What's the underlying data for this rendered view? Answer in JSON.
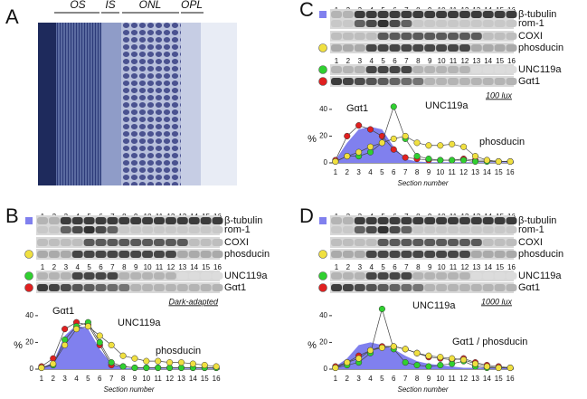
{
  "panels": {
    "A": {
      "label": "A",
      "layers": [
        "OS",
        "IS",
        "ONL",
        "OPL"
      ]
    },
    "B": {
      "label": "B",
      "lanes": [
        1,
        2,
        3,
        4,
        5,
        6,
        7,
        8,
        9,
        10,
        11,
        12,
        13,
        14,
        15,
        16
      ],
      "blots": [
        "β-tubulin",
        "rom-1",
        "COXI",
        "phosducin",
        "UNC119a",
        "Gαt1"
      ]
    },
    "C": {
      "label": "C",
      "lanes": [
        1,
        2,
        3,
        4,
        5,
        6,
        7,
        8,
        9,
        10,
        11,
        12,
        13,
        14,
        15,
        16
      ],
      "blots": [
        "β-tubulin",
        "rom-1",
        "COXI",
        "phosducin",
        "UNC119a",
        "Gαt1"
      ]
    },
    "D": {
      "label": "D",
      "lanes": [
        1,
        2,
        3,
        4,
        5,
        6,
        7,
        8,
        9,
        10,
        11,
        12,
        13,
        14,
        15,
        16
      ],
      "blots": [
        "β-tubulin",
        "rom-1",
        "COXI",
        "phosducin",
        "UNC119a",
        "Gαt1"
      ]
    }
  },
  "chart_data": [
    {
      "type": "line",
      "condition": "Dark-adapted",
      "y_label": "%",
      "x_label": "Section number",
      "annotations": [
        "Gαt1",
        "UNC119a",
        "phosducin"
      ],
      "x": [
        1,
        2,
        3,
        4,
        5,
        6,
        7,
        8,
        9,
        10,
        11,
        12,
        13,
        14,
        15,
        16
      ],
      "xlim": [
        0.7,
        16.3
      ],
      "ylim": [
        0,
        46
      ],
      "yticks": [
        0,
        20,
        40
      ],
      "series": [
        {
          "kind": "area",
          "color": "#8080ee",
          "values": [
            1,
            5,
            25,
            33,
            30,
            15,
            4,
            1,
            0.5,
            0.5,
            0.5,
            0.5,
            0.5,
            0.5,
            0.5,
            0.5
          ]
        },
        {
          "kind": "points",
          "color": "#e02020",
          "values": [
            2,
            8,
            30,
            35,
            33,
            18,
            3,
            2,
            1,
            1,
            1,
            1,
            1,
            1,
            1,
            1
          ]
        },
        {
          "kind": "points",
          "color": "#30d030",
          "values": [
            1,
            3,
            22,
            32,
            35,
            20,
            5,
            2,
            1,
            1,
            1,
            1,
            1,
            1,
            1,
            1
          ]
        },
        {
          "kind": "points",
          "color": "#f0e040",
          "values": [
            1,
            4,
            18,
            30,
            32,
            25,
            18,
            10,
            8,
            6,
            6,
            5,
            5,
            4,
            3,
            2
          ]
        }
      ]
    },
    {
      "type": "line",
      "condition": "100 lux",
      "y_label": "%",
      "x_label": "Section number",
      "annotations": [
        "Gαt1",
        "UNC119a",
        "phosducin"
      ],
      "x": [
        1,
        2,
        3,
        4,
        5,
        6,
        7,
        8,
        9,
        10,
        11,
        12,
        13,
        14,
        15,
        16
      ],
      "xlim": [
        0.7,
        16.3
      ],
      "ylim": [
        0,
        46
      ],
      "yticks": [
        0,
        20,
        40
      ],
      "series": [
        {
          "kind": "area",
          "color": "#8080ee",
          "values": [
            2,
            15,
            25,
            27,
            25,
            12,
            3,
            1,
            0.5,
            0.5,
            0.5,
            0.5,
            0.5,
            0.5,
            0.5,
            0.5
          ]
        },
        {
          "kind": "points",
          "color": "#e02020",
          "values": [
            2,
            20,
            28,
            25,
            20,
            10,
            4,
            3,
            2,
            2,
            2,
            3,
            2,
            2,
            1,
            1
          ]
        },
        {
          "kind": "points",
          "color": "#30d030",
          "values": [
            1,
            5,
            5,
            8,
            15,
            42,
            18,
            5,
            3,
            2,
            2,
            2,
            1,
            1,
            1,
            1
          ]
        },
        {
          "kind": "points",
          "color": "#f0e040",
          "values": [
            1,
            5,
            8,
            12,
            15,
            18,
            20,
            15,
            13,
            13,
            14,
            12,
            5,
            2,
            1,
            1
          ]
        }
      ]
    },
    {
      "type": "line",
      "condition": "1000 lux",
      "y_label": "%",
      "x_label": "Section number",
      "annotations": [
        "UNC119a",
        "Gαt1 / phosducin"
      ],
      "x": [
        1,
        2,
        3,
        4,
        5,
        6,
        7,
        8,
        9,
        10,
        11,
        12,
        13,
        14,
        15,
        16
      ],
      "xlim": [
        0.7,
        16.3
      ],
      "ylim": [
        0,
        46
      ],
      "yticks": [
        0,
        20,
        40
      ],
      "series": [
        {
          "kind": "area",
          "color": "#8080ee",
          "values": [
            2,
            8,
            18,
            20,
            18,
            15,
            10,
            6,
            4,
            3,
            2,
            1,
            1,
            1,
            1,
            1
          ]
        },
        {
          "kind": "points",
          "color": "#e02020",
          "values": [
            2,
            5,
            10,
            14,
            17,
            17,
            15,
            12,
            9,
            8,
            7,
            8,
            5,
            3,
            2,
            1
          ]
        },
        {
          "kind": "points",
          "color": "#30d030",
          "values": [
            1,
            3,
            5,
            12,
            45,
            15,
            5,
            3,
            2,
            3,
            4,
            6,
            2,
            1,
            1,
            1
          ]
        },
        {
          "kind": "points",
          "color": "#f0e040",
          "values": [
            1,
            5,
            8,
            14,
            16,
            17,
            15,
            12,
            10,
            9,
            8,
            7,
            4,
            2,
            1,
            1
          ]
        }
      ]
    }
  ]
}
